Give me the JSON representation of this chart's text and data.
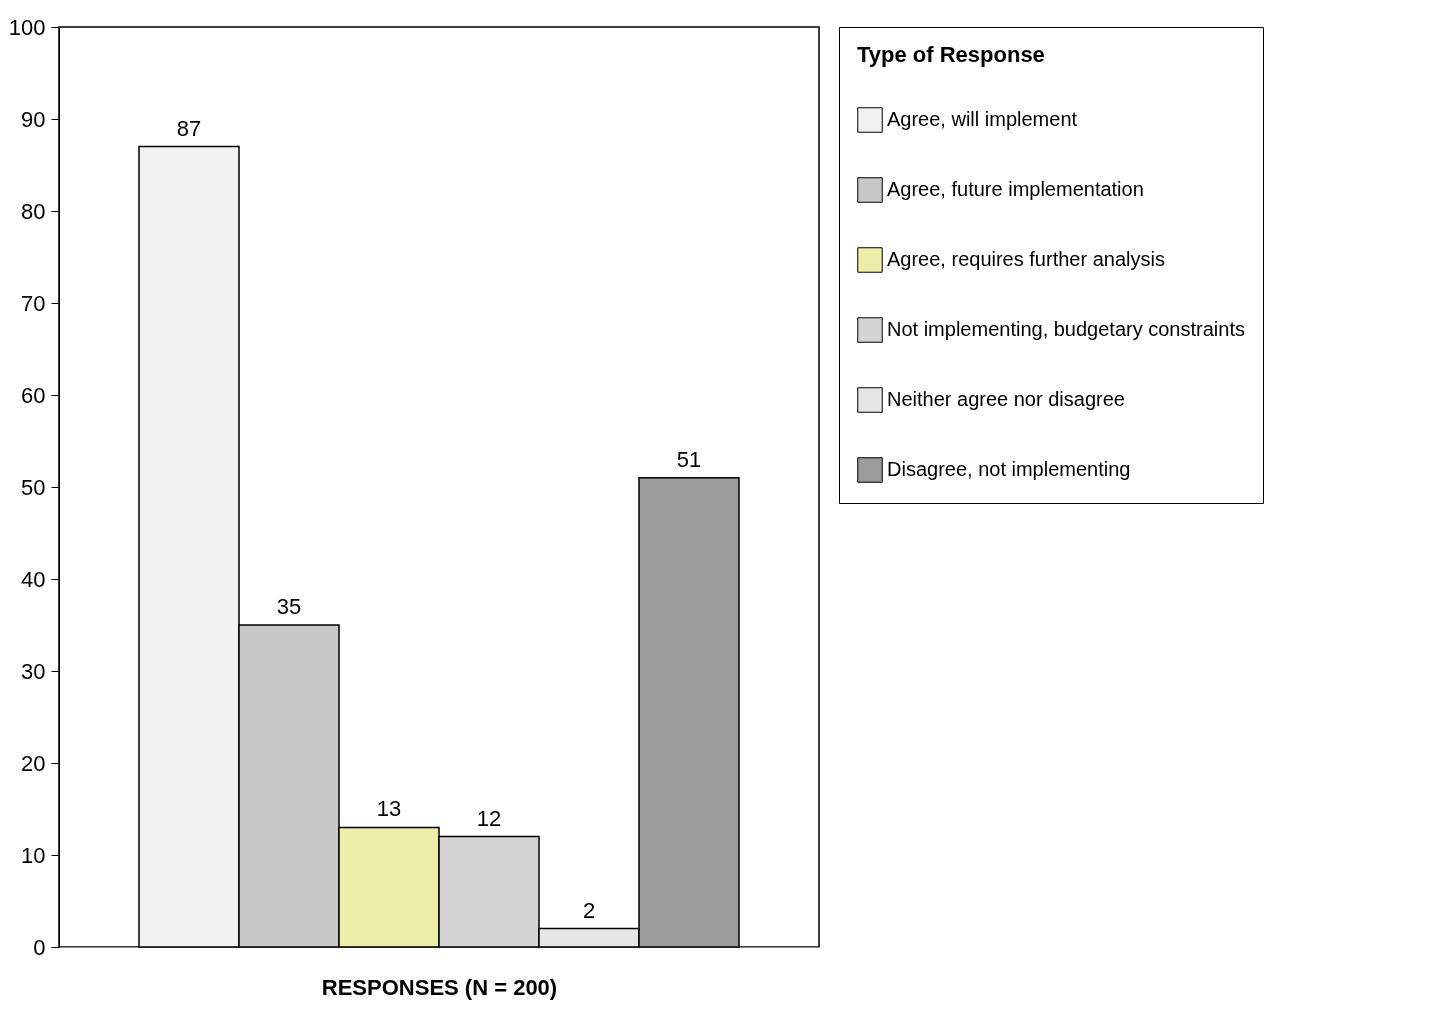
{
  "chart_data": {
    "type": "bar",
    "xlabel": "RESPONSES (N = 200)",
    "legend_title": "Type of Response",
    "categories": [
      null
    ],
    "series": [
      {
        "name": "Agree, will implement",
        "color": "#f2f2f2",
        "values": [
          87
        ]
      },
      {
        "name": "Agree, future implementation",
        "color": "#c8c8c8",
        "values": [
          35
        ]
      },
      {
        "name": "Agree, requires further analysis",
        "color": "#eeeeaa",
        "values": [
          13
        ]
      },
      {
        "name": "Not implementing, budgetary constraints",
        "color": "#d4d4d4",
        "values": [
          12
        ]
      },
      {
        "name": "Neither agree nor disagree",
        "color": "#e6e6e6",
        "values": [
          2
        ]
      },
      {
        "name": "Disagree, not implementing",
        "color": "#9c9c9c",
        "values": [
          51
        ]
      }
    ],
    "ylim": [
      0,
      100
    ],
    "yticks": [
      0,
      10,
      20,
      30,
      40,
      50,
      60,
      70,
      80,
      90,
      100
    ],
    "grid": false,
    "legend": "right",
    "data_labels": true
  }
}
